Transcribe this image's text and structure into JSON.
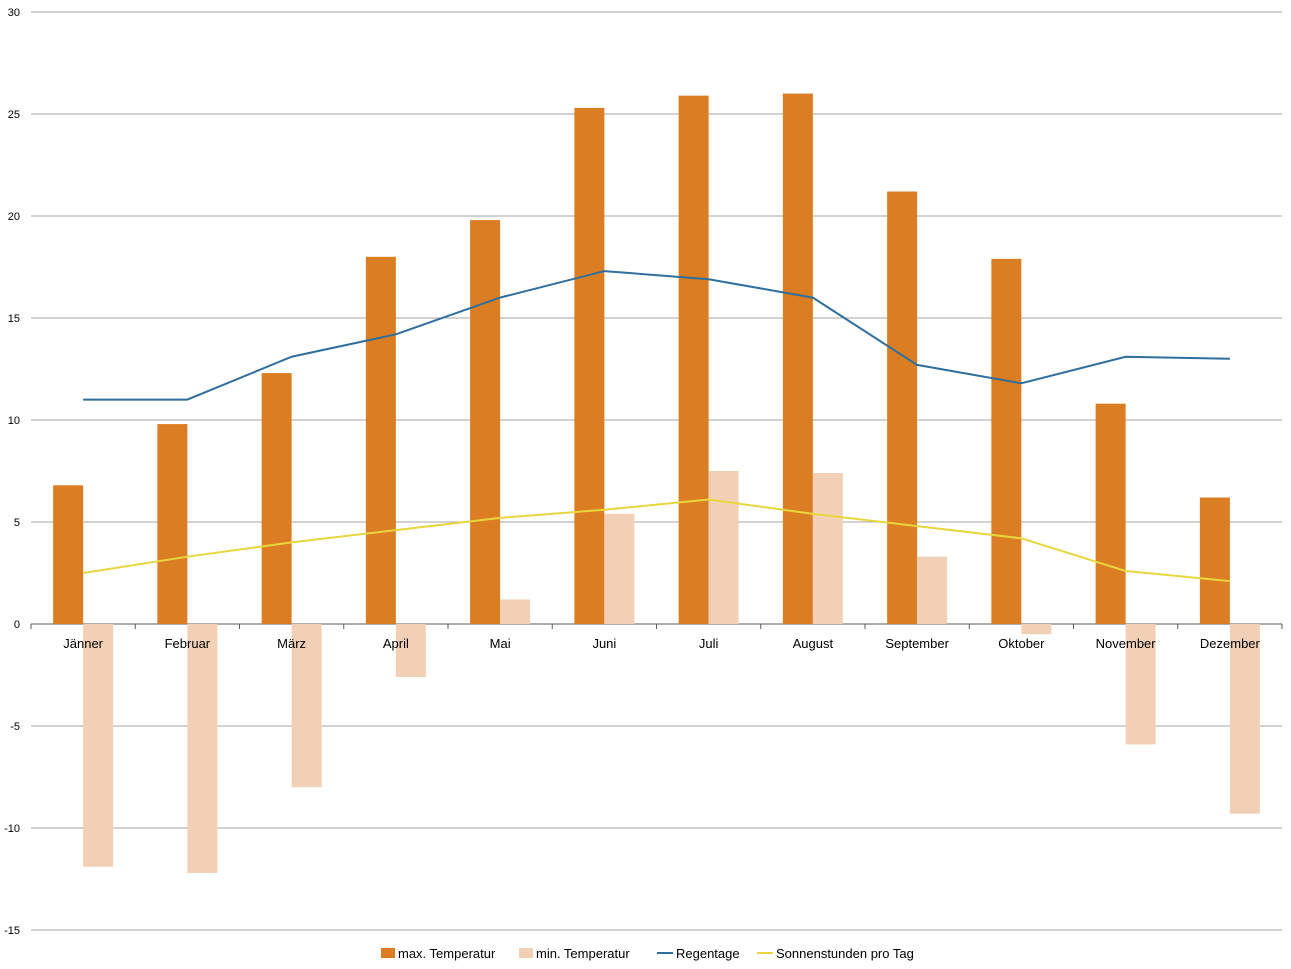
{
  "chart_data": {
    "type": "bar",
    "categories": [
      "Jänner",
      "Februar",
      "März",
      "April",
      "Mai",
      "Juni",
      "Juli",
      "August",
      "September",
      "Oktober",
      "November",
      "Dezember"
    ],
    "series": [
      {
        "name": "max. Temperatur",
        "kind": "bar",
        "color": "#db7d22",
        "values": [
          6.8,
          9.8,
          12.3,
          18.0,
          19.8,
          25.3,
          25.9,
          26.0,
          21.2,
          17.9,
          10.8,
          6.2
        ]
      },
      {
        "name": "min. Temperatur",
        "kind": "bar",
        "color": "#f2d0b5",
        "values": [
          -11.9,
          -12.2,
          -8.0,
          -2.6,
          1.2,
          5.4,
          7.5,
          7.4,
          3.3,
          -0.5,
          -5.9,
          -9.3
        ]
      },
      {
        "name": "Regentage",
        "kind": "line",
        "color": "#2e6f9e",
        "values": [
          11.0,
          11.0,
          13.1,
          14.2,
          16.0,
          17.3,
          16.9,
          16.0,
          12.7,
          11.8,
          13.1,
          13.0
        ]
      },
      {
        "name": "Sonnenstunden pro Tag",
        "kind": "line",
        "color": "#e8d63e",
        "values": [
          2.5,
          3.3,
          4.0,
          4.6,
          5.2,
          5.6,
          6.1,
          5.4,
          4.8,
          4.2,
          2.6,
          2.1
        ]
      }
    ],
    "ylim": [
      -15,
      30
    ],
    "yticks": [
      "-15",
      "-10",
      "-5",
      "0",
      "5",
      "10",
      "15",
      "20",
      "25",
      "30"
    ],
    "grid": true,
    "legend_position": "bottom",
    "colors": {
      "grid": "#a6a6a6",
      "axis": "#595959"
    }
  }
}
